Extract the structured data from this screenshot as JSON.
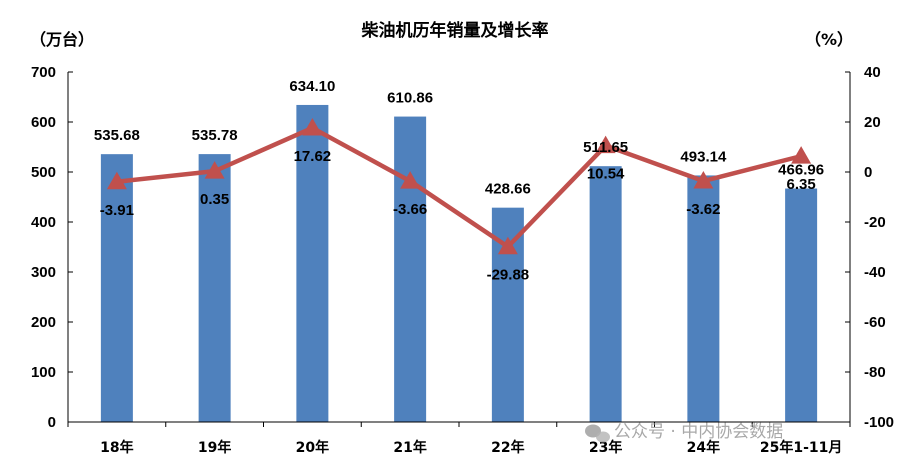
{
  "chart_data": {
    "type": "bar+line",
    "title": "柴油机历年销量及增长率",
    "left_unit": "（万台）",
    "right_unit": "（%）",
    "categories": [
      "18年",
      "19年",
      "20年",
      "21年",
      "22年",
      "23年",
      "24年",
      "25年1-11月"
    ],
    "bar_series": {
      "values": [
        535.68,
        535.78,
        634.1,
        610.86,
        428.66,
        511.65,
        493.14,
        466.96
      ],
      "labels": [
        "535.68",
        "535.78",
        "634.10",
        "610.86",
        "428.66",
        "511.65",
        "493.14",
        "466.96"
      ],
      "color": "#4F81BD",
      "axis": "left"
    },
    "line_series": {
      "values": [
        -3.91,
        0.35,
        17.62,
        -3.66,
        -29.88,
        10.54,
        -3.62,
        6.35
      ],
      "labels": [
        "-3.91",
        "0.35",
        "17.62",
        "-3.66",
        "-29.88",
        "10.54",
        "-3.62",
        "6.35"
      ],
      "color": "#C0504D",
      "marker": "triangle",
      "axis": "right"
    },
    "y_left": {
      "min": 0,
      "max": 700,
      "step": 100,
      "ticks": [
        "0",
        "100",
        "200",
        "300",
        "400",
        "500",
        "600",
        "700"
      ]
    },
    "y_right": {
      "min": -100,
      "max": 40,
      "step": 20,
      "ticks": [
        "-100",
        "-80",
        "-60",
        "-40",
        "-20",
        "0",
        "20",
        "40"
      ]
    },
    "grid": false,
    "legend": "none"
  },
  "watermark": {
    "text": "公众号 · 中内协会数据",
    "icon": "wechat-icon"
  }
}
